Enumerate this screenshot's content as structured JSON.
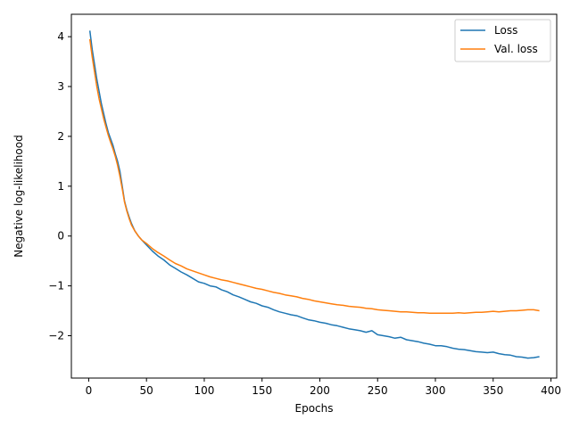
{
  "chart_data": {
    "type": "line",
    "title": "",
    "xlabel": "Epochs",
    "ylabel": "Negative log-likelihood",
    "xlim": [
      -15,
      405
    ],
    "ylim": [
      -2.85,
      4.45
    ],
    "xticks": [
      0,
      50,
      100,
      150,
      200,
      250,
      300,
      350,
      400
    ],
    "yticks": [
      -2,
      -1,
      0,
      1,
      2,
      3,
      4
    ],
    "grid": false,
    "legend_position": "top-right",
    "series": [
      {
        "name": "Loss",
        "color": "#1f77b4",
        "points": [
          [
            1,
            4.12
          ],
          [
            3,
            3.75
          ],
          [
            5,
            3.45
          ],
          [
            7,
            3.15
          ],
          [
            9,
            2.9
          ],
          [
            11,
            2.65
          ],
          [
            13,
            2.45
          ],
          [
            15,
            2.25
          ],
          [
            17,
            2.08
          ],
          [
            19,
            1.95
          ],
          [
            21,
            1.82
          ],
          [
            23,
            1.65
          ],
          [
            25,
            1.5
          ],
          [
            27,
            1.3
          ],
          [
            29,
            1.0
          ],
          [
            31,
            0.7
          ],
          [
            33,
            0.52
          ],
          [
            35,
            0.38
          ],
          [
            37,
            0.25
          ],
          [
            40,
            0.1
          ],
          [
            43,
            0.0
          ],
          [
            46,
            -0.08
          ],
          [
            50,
            -0.18
          ],
          [
            55,
            -0.3
          ],
          [
            60,
            -0.4
          ],
          [
            65,
            -0.48
          ],
          [
            70,
            -0.58
          ],
          [
            75,
            -0.65
          ],
          [
            80,
            -0.72
          ],
          [
            85,
            -0.78
          ],
          [
            90,
            -0.85
          ],
          [
            95,
            -0.92
          ],
          [
            100,
            -0.95
          ],
          [
            105,
            -1.0
          ],
          [
            110,
            -1.02
          ],
          [
            115,
            -1.08
          ],
          [
            120,
            -1.12
          ],
          [
            125,
            -1.18
          ],
          [
            130,
            -1.22
          ],
          [
            135,
            -1.27
          ],
          [
            140,
            -1.32
          ],
          [
            145,
            -1.35
          ],
          [
            150,
            -1.4
          ],
          [
            155,
            -1.43
          ],
          [
            160,
            -1.48
          ],
          [
            165,
            -1.52
          ],
          [
            170,
            -1.55
          ],
          [
            175,
            -1.58
          ],
          [
            180,
            -1.6
          ],
          [
            185,
            -1.64
          ],
          [
            190,
            -1.68
          ],
          [
            195,
            -1.7
          ],
          [
            200,
            -1.73
          ],
          [
            205,
            -1.75
          ],
          [
            210,
            -1.78
          ],
          [
            215,
            -1.8
          ],
          [
            220,
            -1.83
          ],
          [
            225,
            -1.86
          ],
          [
            230,
            -1.88
          ],
          [
            235,
            -1.9
          ],
          [
            240,
            -1.93
          ],
          [
            245,
            -1.9
          ],
          [
            250,
            -1.98
          ],
          [
            255,
            -2.0
          ],
          [
            260,
            -2.02
          ],
          [
            265,
            -2.05
          ],
          [
            270,
            -2.03
          ],
          [
            275,
            -2.08
          ],
          [
            280,
            -2.1
          ],
          [
            285,
            -2.12
          ],
          [
            290,
            -2.15
          ],
          [
            295,
            -2.17
          ],
          [
            300,
            -2.2
          ],
          [
            305,
            -2.2
          ],
          [
            310,
            -2.22
          ],
          [
            315,
            -2.25
          ],
          [
            320,
            -2.27
          ],
          [
            325,
            -2.28
          ],
          [
            330,
            -2.3
          ],
          [
            335,
            -2.32
          ],
          [
            340,
            -2.33
          ],
          [
            345,
            -2.34
          ],
          [
            350,
            -2.33
          ],
          [
            355,
            -2.36
          ],
          [
            360,
            -2.38
          ],
          [
            365,
            -2.39
          ],
          [
            370,
            -2.42
          ],
          [
            375,
            -2.43
          ],
          [
            380,
            -2.45
          ],
          [
            385,
            -2.44
          ],
          [
            390,
            -2.42
          ]
        ]
      },
      {
        "name": "Val. loss",
        "color": "#ff7f0e",
        "points": [
          [
            1,
            3.95
          ],
          [
            3,
            3.6
          ],
          [
            5,
            3.3
          ],
          [
            7,
            3.0
          ],
          [
            9,
            2.75
          ],
          [
            11,
            2.55
          ],
          [
            13,
            2.35
          ],
          [
            15,
            2.18
          ],
          [
            17,
            2.02
          ],
          [
            19,
            1.88
          ],
          [
            21,
            1.75
          ],
          [
            23,
            1.6
          ],
          [
            25,
            1.42
          ],
          [
            27,
            1.2
          ],
          [
            29,
            0.95
          ],
          [
            31,
            0.68
          ],
          [
            33,
            0.5
          ],
          [
            35,
            0.35
          ],
          [
            37,
            0.22
          ],
          [
            40,
            0.1
          ],
          [
            43,
            0.0
          ],
          [
            46,
            -0.08
          ],
          [
            50,
            -0.15
          ],
          [
            55,
            -0.25
          ],
          [
            60,
            -0.33
          ],
          [
            65,
            -0.4
          ],
          [
            70,
            -0.48
          ],
          [
            75,
            -0.55
          ],
          [
            80,
            -0.6
          ],
          [
            85,
            -0.66
          ],
          [
            90,
            -0.7
          ],
          [
            95,
            -0.74
          ],
          [
            100,
            -0.78
          ],
          [
            105,
            -0.82
          ],
          [
            110,
            -0.85
          ],
          [
            115,
            -0.88
          ],
          [
            120,
            -0.9
          ],
          [
            125,
            -0.93
          ],
          [
            130,
            -0.96
          ],
          [
            135,
            -0.99
          ],
          [
            140,
            -1.02
          ],
          [
            145,
            -1.05
          ],
          [
            150,
            -1.07
          ],
          [
            155,
            -1.1
          ],
          [
            160,
            -1.13
          ],
          [
            165,
            -1.15
          ],
          [
            170,
            -1.18
          ],
          [
            175,
            -1.2
          ],
          [
            180,
            -1.22
          ],
          [
            185,
            -1.25
          ],
          [
            190,
            -1.27
          ],
          [
            195,
            -1.3
          ],
          [
            200,
            -1.32
          ],
          [
            205,
            -1.34
          ],
          [
            210,
            -1.36
          ],
          [
            215,
            -1.38
          ],
          [
            220,
            -1.39
          ],
          [
            225,
            -1.41
          ],
          [
            230,
            -1.42
          ],
          [
            235,
            -1.43
          ],
          [
            240,
            -1.45
          ],
          [
            245,
            -1.46
          ],
          [
            250,
            -1.48
          ],
          [
            255,
            -1.49
          ],
          [
            260,
            -1.5
          ],
          [
            265,
            -1.51
          ],
          [
            270,
            -1.52
          ],
          [
            275,
            -1.52
          ],
          [
            280,
            -1.53
          ],
          [
            285,
            -1.54
          ],
          [
            290,
            -1.54
          ],
          [
            295,
            -1.55
          ],
          [
            300,
            -1.55
          ],
          [
            305,
            -1.55
          ],
          [
            310,
            -1.55
          ],
          [
            315,
            -1.55
          ],
          [
            320,
            -1.54
          ],
          [
            325,
            -1.55
          ],
          [
            330,
            -1.54
          ],
          [
            335,
            -1.53
          ],
          [
            340,
            -1.53
          ],
          [
            345,
            -1.52
          ],
          [
            350,
            -1.51
          ],
          [
            355,
            -1.52
          ],
          [
            360,
            -1.51
          ],
          [
            365,
            -1.5
          ],
          [
            370,
            -1.5
          ],
          [
            375,
            -1.49
          ],
          [
            380,
            -1.48
          ],
          [
            385,
            -1.48
          ],
          [
            390,
            -1.5
          ]
        ]
      }
    ]
  }
}
